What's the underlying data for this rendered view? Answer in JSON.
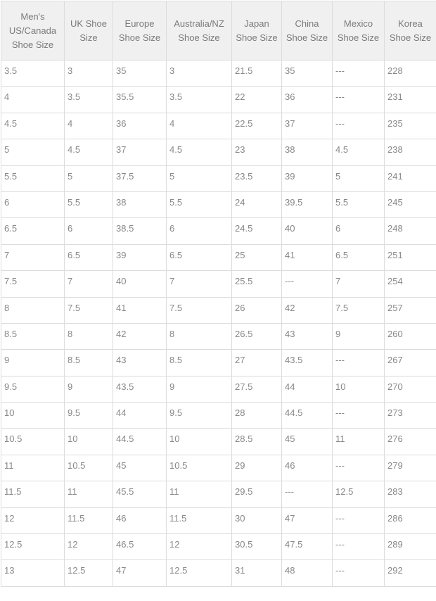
{
  "table": {
    "headers": [
      "Men's US/Canada Shoe Size",
      "UK Shoe Size",
      "Europe Shoe Size",
      "Australia/NZ Shoe Size",
      "Japan Shoe Size",
      "China Shoe Size",
      "Mexico Shoe Size",
      "Korea Shoe Size"
    ],
    "rows": [
      [
        "3.5",
        "3",
        "35",
        "3",
        "21.5",
        "35",
        "---",
        "228"
      ],
      [
        "4",
        "3.5",
        "35.5",
        "3.5",
        "22",
        "36",
        "---",
        "231"
      ],
      [
        "4.5",
        "4",
        "36",
        "4",
        "22.5",
        "37",
        "---",
        "235"
      ],
      [
        "5",
        "4.5",
        "37",
        "4.5",
        "23",
        "38",
        "4.5",
        "238"
      ],
      [
        "5.5",
        "5",
        "37.5",
        "5",
        "23.5",
        "39",
        "5",
        "241"
      ],
      [
        "6",
        "5.5",
        "38",
        "5.5",
        "24",
        "39.5",
        "5.5",
        "245"
      ],
      [
        "6.5",
        "6",
        "38.5",
        "6",
        "24.5",
        "40",
        "6",
        "248"
      ],
      [
        "7",
        "6.5",
        "39",
        "6.5",
        "25",
        "41",
        "6.5",
        "251"
      ],
      [
        "7.5",
        "7",
        "40",
        "7",
        "25.5",
        "---",
        "7",
        "254"
      ],
      [
        "8",
        "7.5",
        "41",
        "7.5",
        "26",
        "42",
        "7.5",
        "257"
      ],
      [
        "8.5",
        "8",
        "42",
        "8",
        "26.5",
        "43",
        "9",
        "260"
      ],
      [
        "9",
        "8.5",
        "43",
        "8.5",
        "27",
        "43.5",
        "---",
        "267"
      ],
      [
        "9.5",
        "9",
        "43.5",
        "9",
        "27.5",
        "44",
        "10",
        "270"
      ],
      [
        "10",
        "9.5",
        "44",
        "9.5",
        "28",
        "44.5",
        "---",
        "273"
      ],
      [
        "10.5",
        "10",
        "44.5",
        "10",
        "28.5",
        "45",
        "11",
        "276"
      ],
      [
        "11",
        "10.5",
        "45",
        "10.5",
        "29",
        "46",
        "---",
        "279"
      ],
      [
        "11.5",
        "11",
        "45.5",
        "11",
        "29.5",
        "---",
        "12.5",
        "283"
      ],
      [
        "12",
        "11.5",
        "46",
        "11.5",
        "30",
        "47",
        "---",
        "286"
      ],
      [
        "12.5",
        "12",
        "46.5",
        "12",
        "30.5",
        "47.5",
        "---",
        "289"
      ],
      [
        "13",
        "12.5",
        "47",
        "12.5",
        "31",
        "48",
        "---",
        "292"
      ]
    ]
  }
}
